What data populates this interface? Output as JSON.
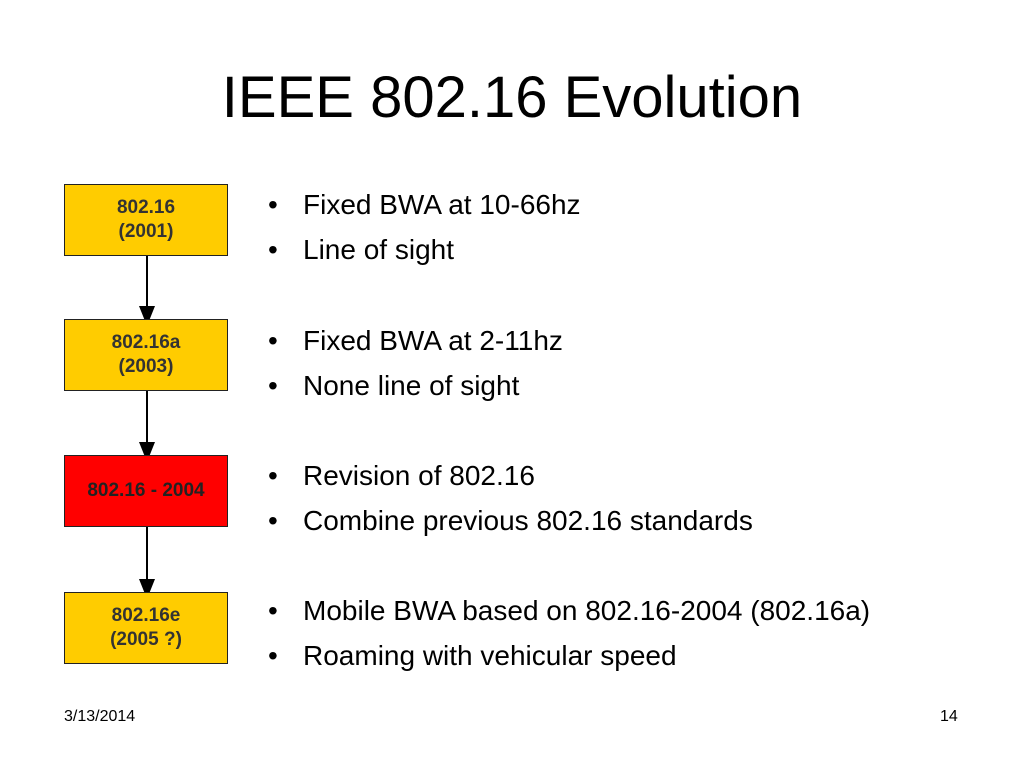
{
  "slide": {
    "title": "IEEE 802.16 Evolution",
    "date": "3/13/2014",
    "page_number": "14"
  },
  "colors": {
    "standard_box": "#ffcc00",
    "highlight_box": "#ff0000"
  },
  "diagram": {
    "boxes": [
      {
        "line1": "802.16",
        "line2": "(2001)",
        "color": "#ffcc00"
      },
      {
        "line1": "802.16a",
        "line2": "(2003)",
        "color": "#ffcc00"
      },
      {
        "line1": "802.16 - 2004",
        "line2": "",
        "color": "#ff0000"
      },
      {
        "line1": "802.16e",
        "line2": "(2005 ?)",
        "color": "#ffcc00"
      }
    ]
  },
  "bullets": [
    {
      "items": [
        "Fixed BWA at 10-66hz",
        "Line of sight"
      ]
    },
    {
      "items": [
        "Fixed BWA at 2-11hz",
        "None line of sight"
      ]
    },
    {
      "items": [
        "Revision of 802.16",
        "Combine previous 802.16 standards"
      ]
    },
    {
      "items": [
        "Mobile BWA based on 802.16-2004 (802.16a)",
        "Roaming with vehicular speed"
      ]
    }
  ]
}
